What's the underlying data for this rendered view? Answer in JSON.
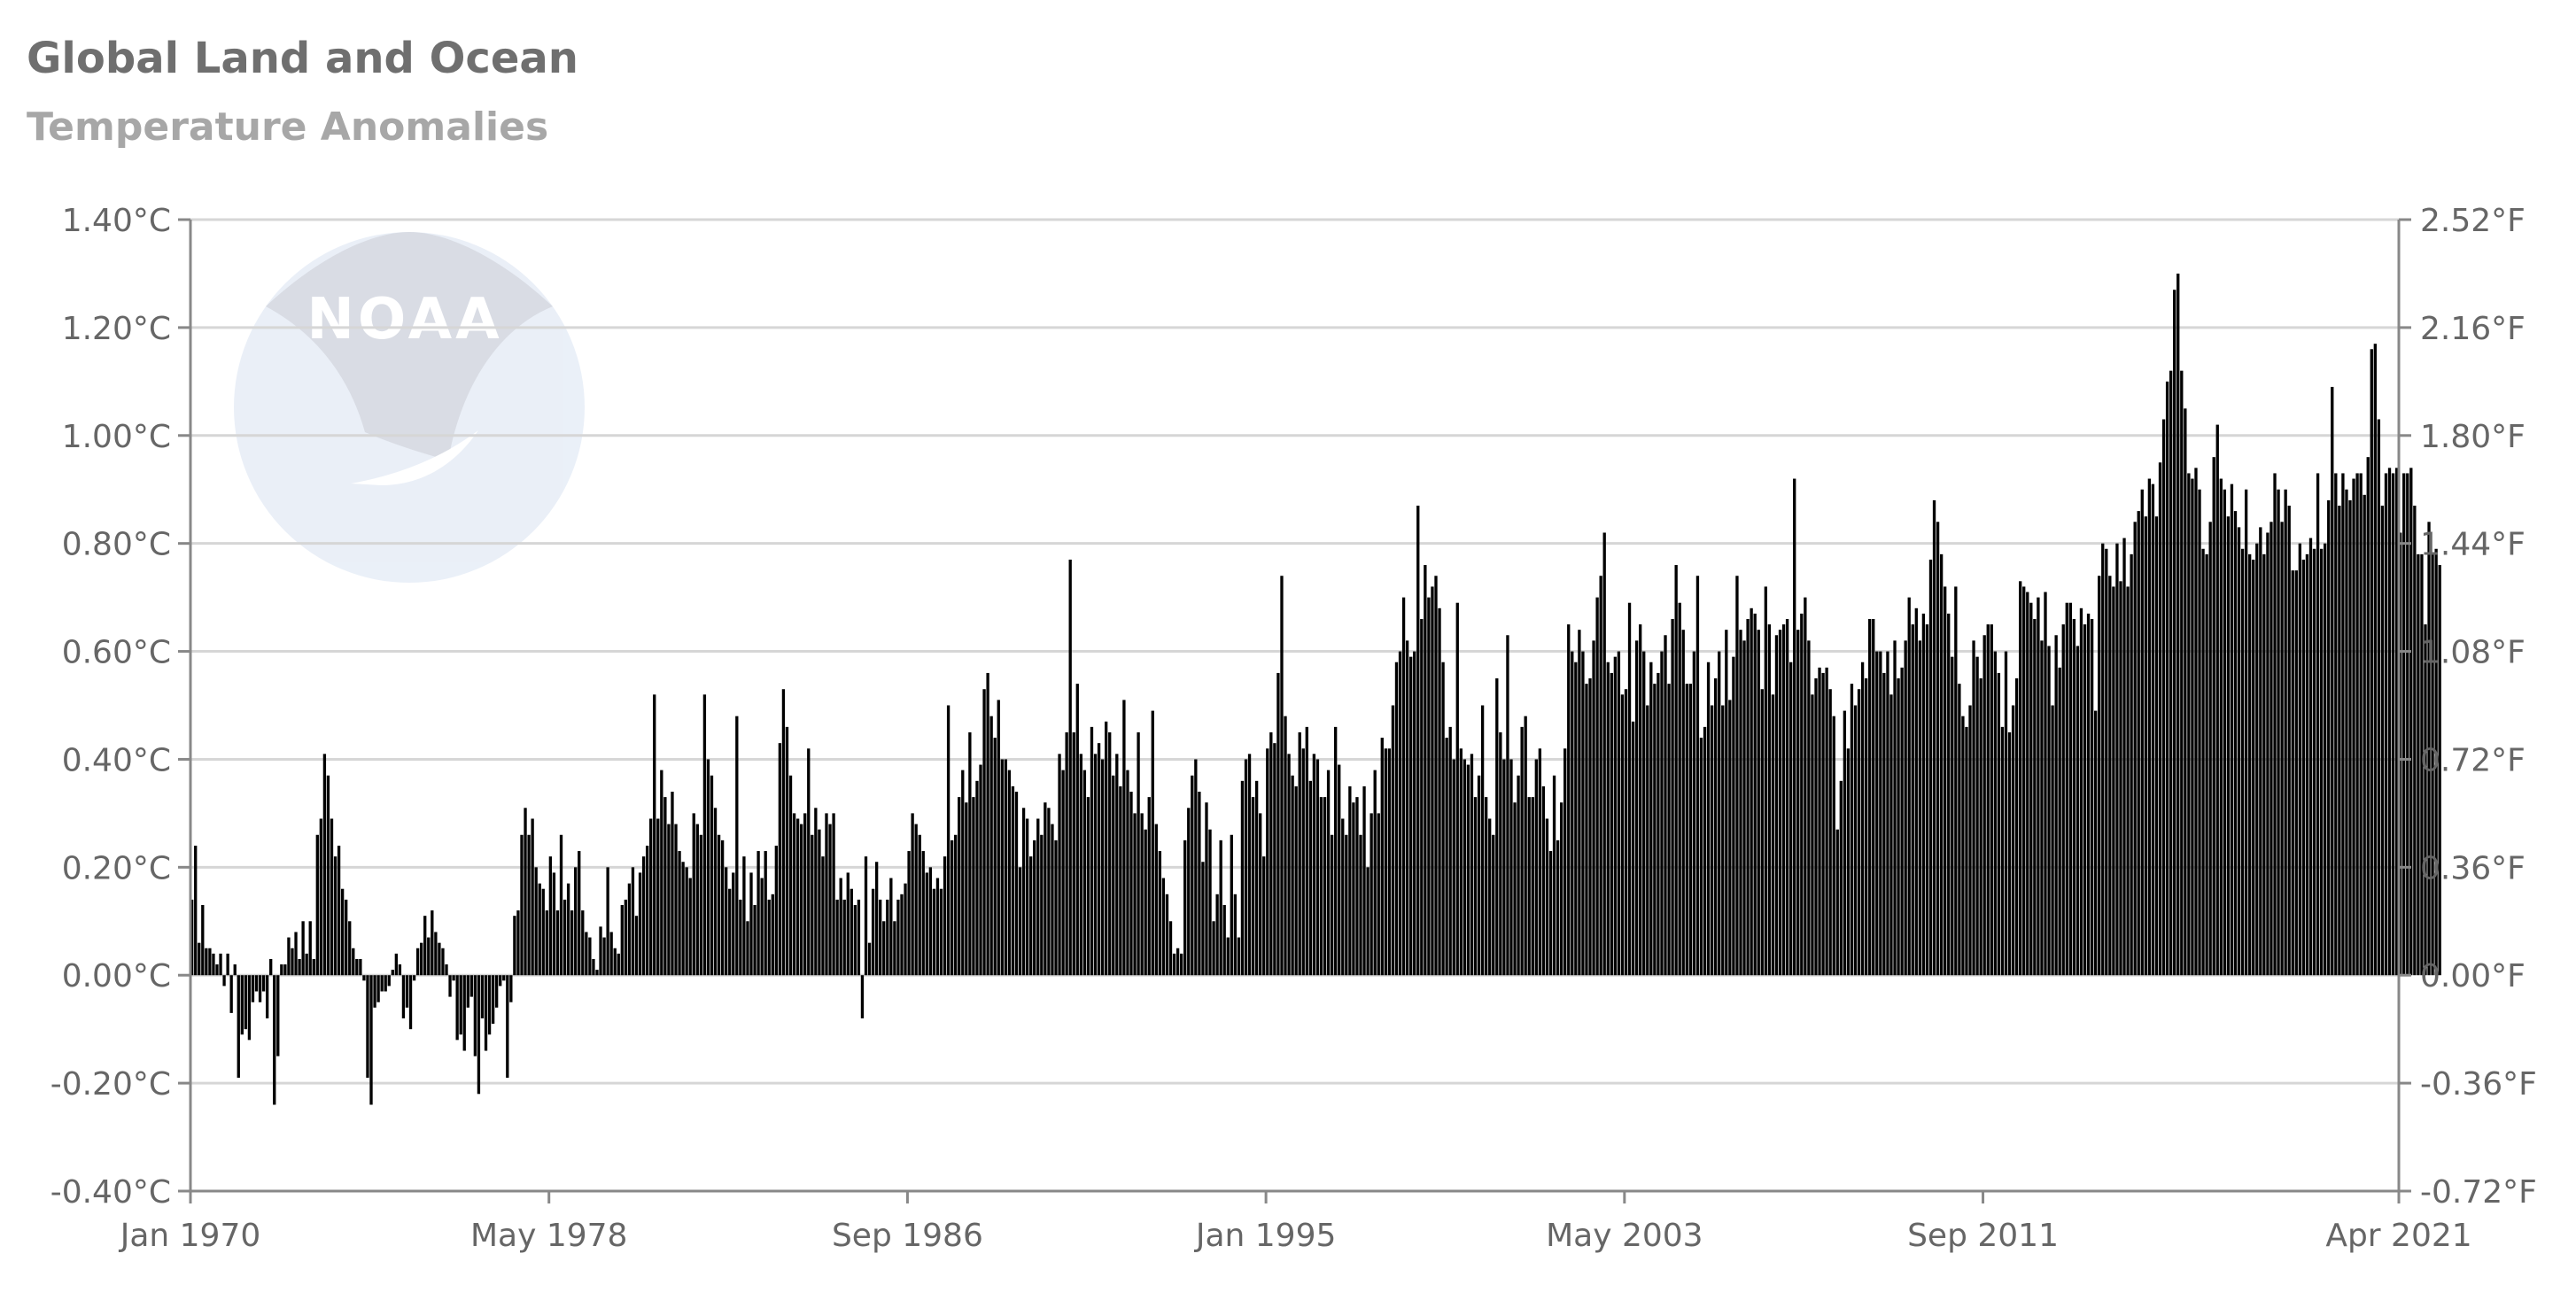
{
  "header": {
    "title": "Global Land and Ocean",
    "subtitle": "Temperature Anomalies"
  },
  "chart_data": {
    "type": "bar",
    "title": "Global Land and Ocean",
    "subtitle": "Temperature Anomalies",
    "xlabel": "",
    "ylabel": "",
    "x_range": [
      "Jan 1970",
      "Apr 2021"
    ],
    "x_ticks": [
      "Jan 1970",
      "May 1978",
      "Sep 1986",
      "Jan 1995",
      "May 2003",
      "Sep 2011",
      "Apr 2021"
    ],
    "x_tick_months": [
      0,
      100,
      200,
      300,
      400,
      500,
      615
    ],
    "ylim": [
      -0.4,
      1.4
    ],
    "y_ticks_left": [
      "-0.40°C",
      "-0.20°C",
      "0.00°C",
      "0.20°C",
      "0.40°C",
      "0.60°C",
      "0.80°C",
      "1.00°C",
      "1.20°C",
      "1.40°C"
    ],
    "y_ticks_right": [
      "-0.72°F",
      "-0.36°F",
      "0.00°F",
      "0.36°F",
      "0.72°F",
      "1.08°F",
      "1.44°F",
      "1.80°F",
      "2.16°F",
      "2.52°F"
    ],
    "grid": true,
    "bar_color": "#000000",
    "grid_color": "#d6d6d6",
    "axis_color": "#888888",
    "watermark": "NOAA",
    "series": [
      {
        "values": [
          0.14,
          0.24,
          0.06,
          0.13,
          0.05,
          0.05,
          0.04,
          0.02,
          0.04,
          -0.02,
          0.04,
          -0.07,
          0.02,
          -0.19,
          -0.11,
          -0.1,
          -0.12,
          -0.05,
          -0.03,
          -0.05,
          -0.03,
          -0.08,
          0.03,
          -0.24,
          -0.15,
          0.02,
          0.02,
          0.07,
          0.05,
          0.08,
          0.03,
          0.1,
          0.04,
          0.1,
          0.03,
          0.26,
          0.29,
          0.41,
          0.37,
          0.29,
          0.22,
          0.24,
          0.16,
          0.14,
          0.1,
          0.05,
          0.03,
          0.03,
          -0.01,
          -0.19,
          -0.24,
          -0.06,
          -0.05,
          -0.03,
          -0.03,
          -0.02,
          0.01,
          0.04,
          0.02,
          -0.08,
          -0.06,
          -0.1,
          -0.01,
          0.05,
          0.06,
          0.11,
          0.07,
          0.12,
          0.08,
          0.06,
          0.05,
          0.02,
          -0.04,
          -0.01,
          -0.12,
          -0.11,
          -0.14,
          -0.06,
          -0.04,
          -0.15,
          -0.22,
          -0.08,
          -0.14,
          -0.11,
          -0.09,
          -0.06,
          -0.02,
          -0.01,
          -0.19,
          -0.05,
          0.11,
          0.12,
          0.26,
          0.31,
          0.26,
          0.29,
          0.2,
          0.17,
          0.16,
          0.12,
          0.22,
          0.19,
          0.12,
          0.26,
          0.14,
          0.17,
          0.12,
          0.2,
          0.23,
          0.12,
          0.08,
          0.07,
          0.03,
          0.01,
          0.09,
          0.07,
          0.2,
          0.08,
          0.05,
          0.04,
          0.13,
          0.14,
          0.17,
          0.2,
          0.11,
          0.19,
          0.22,
          0.24,
          0.29,
          0.52,
          0.29,
          0.38,
          0.33,
          0.28,
          0.34,
          0.28,
          0.23,
          0.21,
          0.2,
          0.18,
          0.3,
          0.28,
          0.26,
          0.52,
          0.4,
          0.37,
          0.31,
          0.26,
          0.25,
          0.2,
          0.16,
          0.19,
          0.48,
          0.14,
          0.22,
          0.1,
          0.19,
          0.13,
          0.23,
          0.18,
          0.23,
          0.14,
          0.15,
          0.24,
          0.43,
          0.53,
          0.46,
          0.37,
          0.3,
          0.29,
          0.28,
          0.3,
          0.42,
          0.26,
          0.31,
          0.27,
          0.22,
          0.3,
          0.28,
          0.3,
          0.14,
          0.18,
          0.14,
          0.19,
          0.16,
          0.13,
          0.14,
          -0.08,
          0.22,
          0.06,
          0.16,
          0.21,
          0.14,
          0.1,
          0.14,
          0.18,
          0.1,
          0.14,
          0.15,
          0.17,
          0.23,
          0.3,
          0.28,
          0.26,
          0.23,
          0.19,
          0.2,
          0.16,
          0.18,
          0.16,
          0.22,
          0.5,
          0.25,
          0.26,
          0.33,
          0.38,
          0.32,
          0.45,
          0.33,
          0.36,
          0.39,
          0.53,
          0.56,
          0.48,
          0.44,
          0.51,
          0.4,
          0.4,
          0.38,
          0.35,
          0.34,
          0.2,
          0.31,
          0.29,
          0.22,
          0.25,
          0.29,
          0.26,
          0.32,
          0.31,
          0.28,
          0.25,
          0.41,
          0.38,
          0.45,
          0.77,
          0.45,
          0.54,
          0.41,
          0.38,
          0.33,
          0.46,
          0.41,
          0.43,
          0.4,
          0.47,
          0.45,
          0.37,
          0.41,
          0.35,
          0.51,
          0.38,
          0.34,
          0.3,
          0.45,
          0.3,
          0.27,
          0.33,
          0.49,
          0.28,
          0.23,
          0.18,
          0.15,
          0.1,
          0.04,
          0.05,
          0.04,
          0.25,
          0.31,
          0.37,
          0.4,
          0.34,
          0.21,
          0.32,
          0.27,
          0.1,
          0.15,
          0.25,
          0.13,
          0.07,
          0.26,
          0.15,
          0.07,
          0.36,
          0.4,
          0.41,
          0.33,
          0.36,
          0.3,
          0.22,
          0.42,
          0.45,
          0.43,
          0.56,
          0.74,
          0.48,
          0.41,
          0.37,
          0.35,
          0.45,
          0.42,
          0.46,
          0.36,
          0.41,
          0.4,
          0.33,
          0.33,
          0.38,
          0.26,
          0.46,
          0.39,
          0.29,
          0.26,
          0.35,
          0.32,
          0.33,
          0.26,
          0.35,
          0.2,
          0.3,
          0.38,
          0.3,
          0.44,
          0.42,
          0.42,
          0.5,
          0.58,
          0.6,
          0.7,
          0.62,
          0.59,
          0.6,
          0.87,
          0.66,
          0.76,
          0.7,
          0.72,
          0.74,
          0.68,
          0.58,
          0.44,
          0.46,
          0.4,
          0.69,
          0.42,
          0.4,
          0.39,
          0.41,
          0.33,
          0.37,
          0.5,
          0.33,
          0.29,
          0.26,
          0.55,
          0.45,
          0.4,
          0.63,
          0.4,
          0.32,
          0.37,
          0.46,
          0.48,
          0.33,
          0.33,
          0.4,
          0.42,
          0.35,
          0.29,
          0.23,
          0.37,
          0.25,
          0.32,
          0.42,
          0.65,
          0.6,
          0.58,
          0.64,
          0.6,
          0.54,
          0.55,
          0.62,
          0.7,
          0.74,
          0.82,
          0.58,
          0.56,
          0.59,
          0.6,
          0.52,
          0.53,
          0.69,
          0.47,
          0.62,
          0.65,
          0.6,
          0.5,
          0.58,
          0.54,
          0.56,
          0.6,
          0.63,
          0.54,
          0.66,
          0.76,
          0.69,
          0.64,
          0.54,
          0.54,
          0.6,
          0.74,
          0.44,
          0.46,
          0.58,
          0.5,
          0.55,
          0.6,
          0.5,
          0.64,
          0.51,
          0.59,
          0.74,
          0.64,
          0.62,
          0.66,
          0.68,
          0.67,
          0.64,
          0.53,
          0.72,
          0.65,
          0.52,
          0.63,
          0.64,
          0.65,
          0.66,
          0.58,
          0.92,
          0.64,
          0.67,
          0.7,
          0.62,
          0.52,
          0.55,
          0.57,
          0.56,
          0.57,
          0.53,
          0.48,
          0.27,
          0.36,
          0.49,
          0.42,
          0.54,
          0.5,
          0.53,
          0.58,
          0.55,
          0.66,
          0.66,
          0.6,
          0.6,
          0.56,
          0.6,
          0.52,
          0.62,
          0.55,
          0.57,
          0.62,
          0.7,
          0.65,
          0.68,
          0.62,
          0.67,
          0.65,
          0.77,
          0.88,
          0.84,
          0.78,
          0.72,
          0.67,
          0.59,
          0.72,
          0.54,
          0.48,
          0.46,
          0.5,
          0.62,
          0.59,
          0.55,
          0.63,
          0.65,
          0.65,
          0.6,
          0.56,
          0.46,
          0.6,
          0.45,
          0.5,
          0.55,
          0.73,
          0.72,
          0.71,
          0.69,
          0.66,
          0.7,
          0.62,
          0.71,
          0.61,
          0.5,
          0.63,
          0.57,
          0.65,
          0.69,
          0.69,
          0.66,
          0.61,
          0.68,
          0.65,
          0.67,
          0.66,
          0.49,
          0.74,
          0.8,
          0.79,
          0.74,
          0.72,
          0.8,
          0.73,
          0.81,
          0.72,
          0.78,
          0.84,
          0.86,
          0.9,
          0.85,
          0.92,
          0.91,
          0.85,
          0.95,
          1.03,
          1.1,
          1.12,
          1.27,
          1.3,
          1.12,
          1.05,
          0.93,
          0.92,
          0.94,
          0.9,
          0.79,
          0.78,
          0.84,
          0.96,
          1.02,
          0.92,
          0.9,
          0.85,
          0.91,
          0.86,
          0.83,
          0.79,
          0.9,
          0.78,
          0.77,
          0.8,
          0.83,
          0.78,
          0.82,
          0.84,
          0.93,
          0.9,
          0.84,
          0.9,
          0.87,
          0.75,
          0.75,
          0.8,
          0.77,
          0.78,
          0.81,
          0.79,
          0.93,
          0.79,
          0.8,
          0.88,
          1.09,
          0.93,
          0.87,
          0.93,
          0.9,
          0.88,
          0.92,
          0.93,
          0.93,
          0.89,
          0.96,
          1.16,
          1.17,
          1.03,
          0.87,
          0.93,
          0.94,
          0.93,
          0.94,
          0.82,
          0.93,
          0.93,
          0.94,
          0.87,
          0.78,
          0.78,
          0.65,
          0.84,
          0.78,
          0.79,
          0.76
        ]
      }
    ]
  }
}
